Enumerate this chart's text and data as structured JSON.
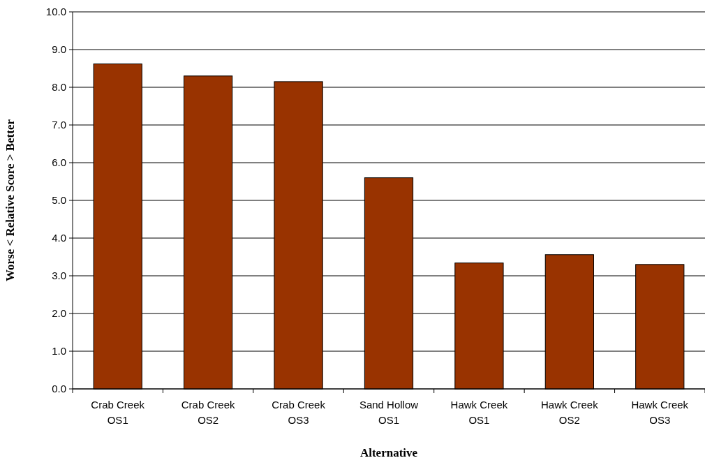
{
  "chart_data": {
    "type": "bar",
    "xlabel": "Alternative",
    "ylabel": "Worse < Relative Score > Better",
    "categories": [
      "Crab Creek\nOS1",
      "Crab Creek\nOS2",
      "Crab Creek\nOS3",
      "Sand Hollow\nOS1",
      "Hawk Creek\nOS1",
      "Hawk Creek\nOS2",
      "Hawk Creek\nOS3"
    ],
    "values": [
      8.62,
      8.3,
      8.15,
      5.6,
      3.34,
      3.56,
      3.3
    ],
    "color": "#993300",
    "ylim": [
      0,
      10
    ],
    "yticks": [
      {
        "value": 0,
        "label": "0.0"
      },
      {
        "value": 1,
        "label": "1.0"
      },
      {
        "value": 2,
        "label": "2.0"
      },
      {
        "value": 3,
        "label": "3.0"
      },
      {
        "value": 4,
        "label": "4.0"
      },
      {
        "value": 5,
        "label": "5.0"
      },
      {
        "value": 6,
        "label": "6.0"
      },
      {
        "value": 7,
        "label": "7.0"
      },
      {
        "value": 8,
        "label": "8.0"
      },
      {
        "value": 9,
        "label": "9.0"
      },
      {
        "value": 10,
        "label": "10.0"
      }
    ],
    "grid": "y"
  }
}
